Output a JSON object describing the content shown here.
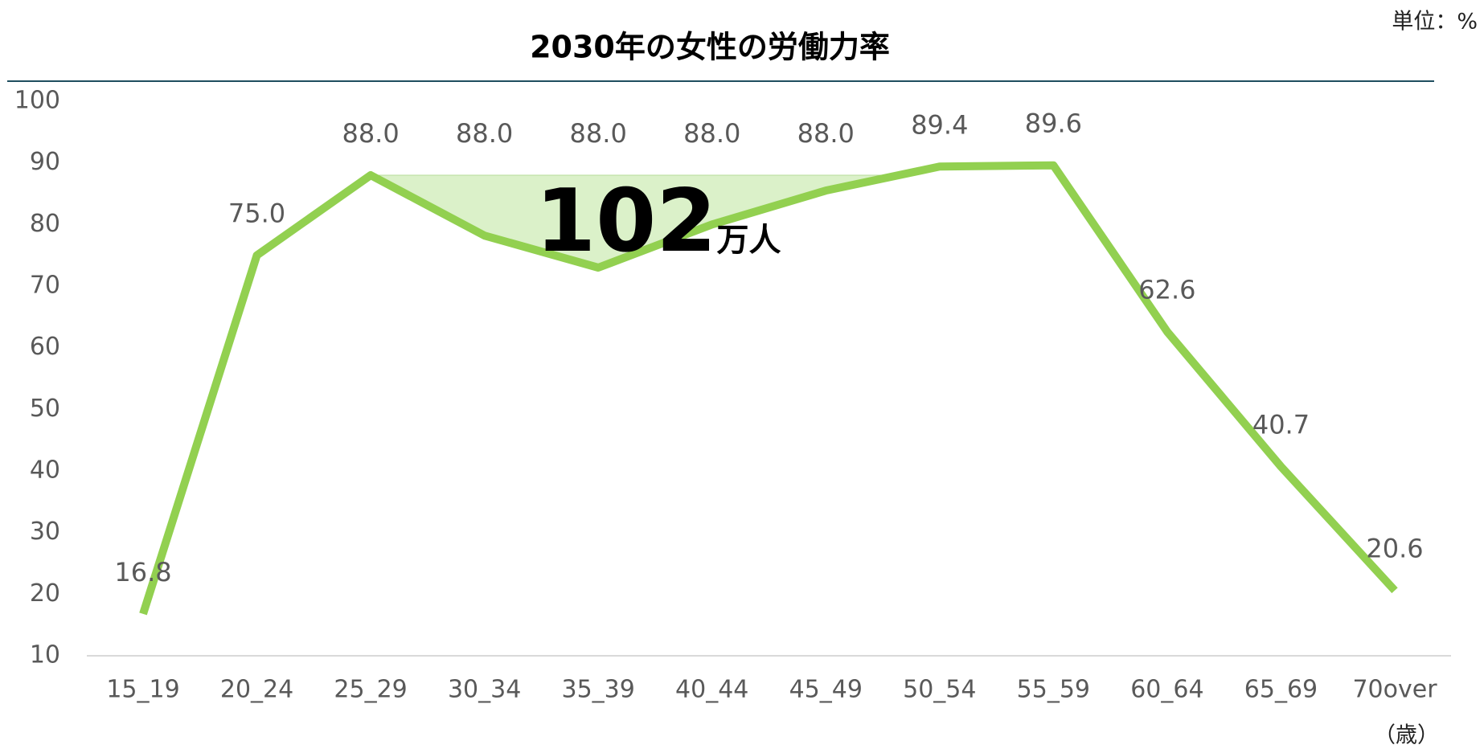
{
  "chart_data": {
    "type": "line",
    "title": "2030年の女性の労働力率",
    "unit_label": "単位：%",
    "x_axis_label": "（歳）",
    "annotation": {
      "value": "102",
      "unit": "万人"
    },
    "categories": [
      "15_19",
      "20_24",
      "25_29",
      "30_34",
      "35_39",
      "40_44",
      "45_49",
      "50_54",
      "55_59",
      "60_64",
      "65_69",
      "70over"
    ],
    "series": [
      {
        "color": "#92d050",
        "values": [
          16.8,
          75.0,
          88.0,
          78.2,
          73.0,
          80.0,
          85.5,
          89.4,
          89.6,
          62.6,
          40.7,
          20.6
        ],
        "value_labels": [
          "16.8",
          "75.0",
          "88.0",
          null,
          null,
          null,
          null,
          "89.4",
          "89.6",
          "62.6",
          "40.7",
          "20.6"
        ]
      },
      {
        "color": "#d5efc0",
        "values": [
          null,
          null,
          88.0,
          88.0,
          88.0,
          88.0,
          88.0,
          null,
          null,
          null,
          null,
          null
        ],
        "value_labels": [
          null,
          null,
          null,
          "88.0",
          "88.0",
          "88.0",
          "88.0",
          null,
          null,
          null,
          null,
          null
        ]
      }
    ],
    "ylim": [
      10,
      100
    ],
    "yticks": [
      10,
      20,
      30,
      40,
      50,
      60,
      70,
      80,
      90,
      100
    ],
    "grid": false
  }
}
